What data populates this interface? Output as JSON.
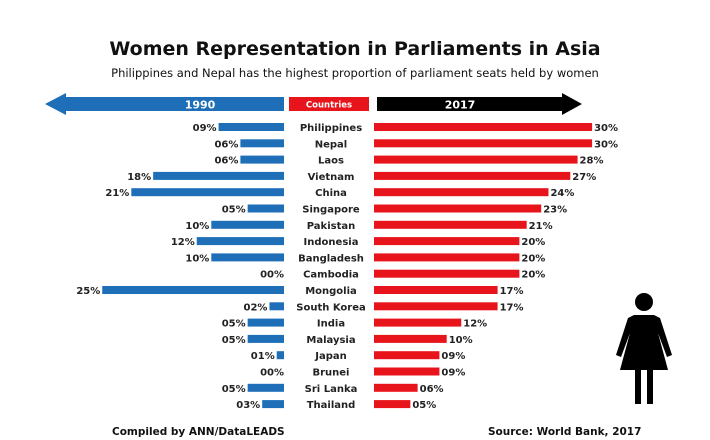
{
  "title": "Women Representation in Parliaments in Asia",
  "subtitle": "Philippines and Nepal has the highest proportion of parliament seats held by women",
  "footer": {
    "compiled": "Compiled by ANN/DataLEADS",
    "source": "Source: World Bank, 2017"
  },
  "colors": {
    "left": "#1f6fb8",
    "right": "#e8141c",
    "header_right": "#000000",
    "header_center": "#e8141c"
  },
  "icon": "woman-icon",
  "chart_data": {
    "type": "bar",
    "orientation": "horizontal-butterfly",
    "header": {
      "left": "1990",
      "center": "Countries",
      "right": "2017"
    },
    "categories": [
      "Philippines",
      "Nepal",
      "Laos",
      "Vietnam",
      "China",
      "Singapore",
      "Pakistan",
      "Indonesia",
      "Bangladesh",
      "Cambodia",
      "Mongolia",
      "South Korea",
      "India",
      "Malaysia",
      "Japan",
      "Brunei",
      "Sri Lanka",
      "Thailand"
    ],
    "series": [
      {
        "name": "1990",
        "values": [
          9,
          6,
          6,
          18,
          21,
          5,
          10,
          12,
          10,
          0,
          25,
          2,
          5,
          5,
          1,
          0,
          5,
          3
        ],
        "labels": [
          "09%",
          "06%",
          "06%",
          "18%",
          "21%",
          "05%",
          "10%",
          "12%",
          "10%",
          "00%",
          "25%",
          "02%",
          "05%",
          "05%",
          "01%",
          "00%",
          "05%",
          "03%"
        ]
      },
      {
        "name": "2017",
        "values": [
          30,
          30,
          28,
          27,
          24,
          23,
          21,
          20,
          20,
          20,
          17,
          17,
          12,
          10,
          9,
          9,
          6,
          5
        ],
        "labels": [
          "30%",
          "30%",
          "28%",
          "27%",
          "24%",
          "23%",
          "21%",
          "20%",
          "20%",
          "20%",
          "17%",
          "17%",
          "12%",
          "10%",
          "09%",
          "09%",
          "06%",
          "05%"
        ]
      }
    ],
    "unit": "%"
  }
}
